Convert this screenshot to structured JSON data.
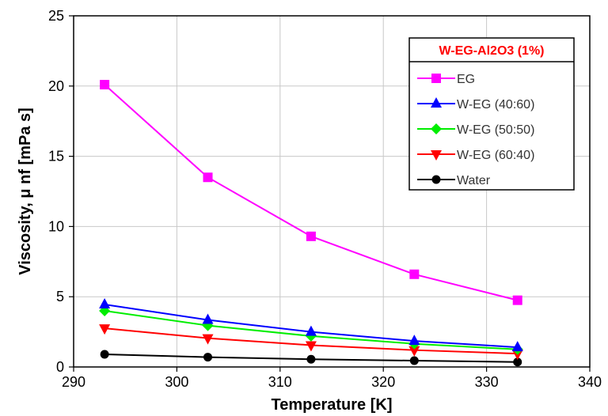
{
  "colors": {
    "grid": "#c8c8c8",
    "axis": "#000000",
    "legend_title": "#ff0000"
  },
  "chart_data": {
    "type": "line",
    "title": "",
    "xlabel": "Temperature [K]",
    "ylabel": "Viscosity, μ nf [mPa s]",
    "xlim": [
      290,
      340
    ],
    "ylim": [
      0,
      25
    ],
    "xticks": [
      290,
      300,
      310,
      320,
      330,
      340
    ],
    "yticks": [
      0,
      5,
      10,
      15,
      20,
      25
    ],
    "grid": true,
    "legend_title": "W-EG-Al2O3 (1%)",
    "legend_position": "top-right",
    "x": [
      293,
      303,
      313,
      323,
      333
    ],
    "series": [
      {
        "name": "EG",
        "color": "#ff00ff",
        "marker": "square",
        "values": [
          20.1,
          13.5,
          9.3,
          6.6,
          4.75
        ]
      },
      {
        "name": "W-EG (40:60)",
        "color": "#0000ff",
        "marker": "triangle-up",
        "values": [
          4.45,
          3.35,
          2.5,
          1.85,
          1.4
        ]
      },
      {
        "name": "W-EG (50:50)",
        "color": "#00ee00",
        "marker": "diamond",
        "values": [
          4.0,
          2.95,
          2.2,
          1.65,
          1.25
        ]
      },
      {
        "name": "W-EG (60:40)",
        "color": "#ff0000",
        "marker": "triangle-down",
        "values": [
          2.75,
          2.05,
          1.55,
          1.2,
          0.95
        ]
      },
      {
        "name": "Water",
        "color": "#000000",
        "marker": "circle",
        "values": [
          0.9,
          0.7,
          0.55,
          0.45,
          0.35
        ]
      }
    ]
  }
}
